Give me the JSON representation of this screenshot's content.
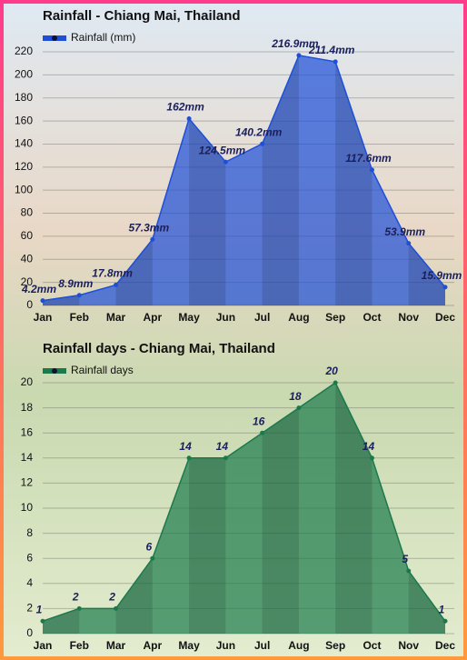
{
  "chart_data": [
    {
      "type": "area",
      "title": "Rainfall - Chiang Mai, Thailand",
      "categories": [
        "Jan",
        "Feb",
        "Mar",
        "Apr",
        "May",
        "Jun",
        "Jul",
        "Aug",
        "Sep",
        "Oct",
        "Nov",
        "Dec"
      ],
      "series": [
        {
          "name": "Rainfall (mm)",
          "color": "#1d4fd8",
          "values": [
            4.2,
            8.9,
            17.8,
            57.3,
            162,
            124.5,
            140.2,
            216.9,
            211.4,
            117.6,
            53.9,
            15.9
          ],
          "value_labels": [
            "4.2mm",
            "8.9mm",
            "17.8mm",
            "57.3mm",
            "162mm",
            "124.5mm",
            "140.2mm",
            "216.9mm",
            "211.4mm",
            "117.6mm",
            "53.9mm",
            "15.9mm"
          ]
        }
      ],
      "ylim": [
        0,
        220
      ],
      "yticks": [
        0,
        20,
        40,
        60,
        80,
        100,
        120,
        140,
        160,
        180,
        200,
        220
      ],
      "grid": true
    },
    {
      "type": "area",
      "title": "Rainfall days - Chiang Mai, Thailand",
      "categories": [
        "Jan",
        "Feb",
        "Mar",
        "Apr",
        "May",
        "Jun",
        "Jul",
        "Aug",
        "Sep",
        "Oct",
        "Nov",
        "Dec"
      ],
      "series": [
        {
          "name": "Rainfall days",
          "color": "#1b7a4c",
          "values": [
            1,
            2,
            2,
            6,
            14,
            14,
            16,
            18,
            20,
            14,
            5,
            1
          ]
        }
      ],
      "ylim": [
        0,
        20
      ],
      "yticks": [
        0,
        2,
        4,
        6,
        8,
        10,
        12,
        14,
        16,
        18,
        20
      ],
      "grid": true
    }
  ]
}
